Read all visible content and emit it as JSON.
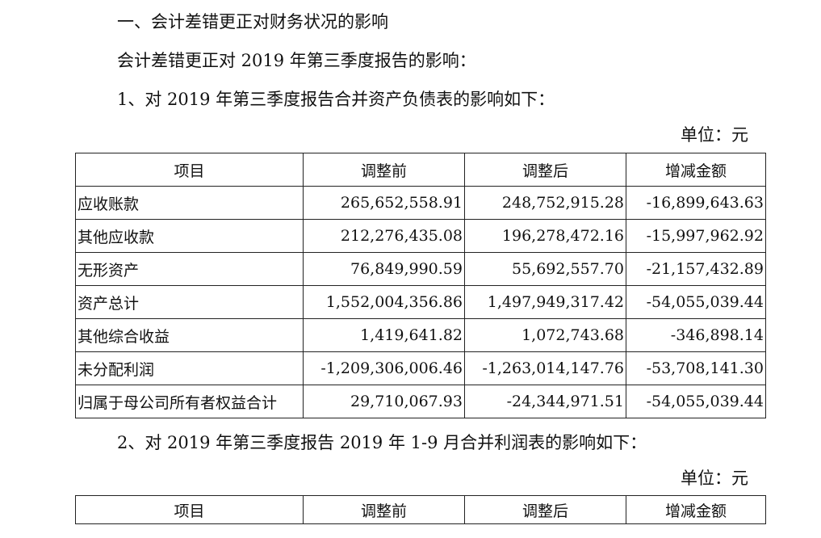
{
  "section_heading": "一、会计差错更正对财务状况的影响",
  "intro": "会计差错更正对 2019 年第三季度报告的影响：",
  "item1_heading": "1、对 2019 年第三季度报告合并资产负债表的影响如下：",
  "unit_label": "单位：元",
  "table1": {
    "headers": [
      "项目",
      "调整前",
      "调整后",
      "增减金额"
    ],
    "rows": [
      [
        "应收账款",
        "265,652,558.91",
        "248,752,915.28",
        "-16,899,643.63"
      ],
      [
        "其他应收款",
        "212,276,435.08",
        "196,278,472.16",
        "-15,997,962.92"
      ],
      [
        "无形资产",
        "76,849,990.59",
        "55,692,557.70",
        "-21,157,432.89"
      ],
      [
        "资产总计",
        "1,552,004,356.86",
        "1,497,949,317.42",
        "-54,055,039.44"
      ],
      [
        "其他综合收益",
        "1,419,641.82",
        "1,072,743.68",
        "-346,898.14"
      ],
      [
        "未分配利润",
        "-1,209,306,006.46",
        "-1,263,014,147.76",
        "-53,708,141.30"
      ],
      [
        "归属于母公司所有者权益合计",
        "29,710,067.93",
        "-24,344,971.51",
        "-54,055,039.44"
      ]
    ]
  },
  "item2_heading": "2、对 2019 年第三季度报告 2019 年 1-9 月合并利润表的影响如下：",
  "unit_label_2": "单位：元",
  "table2": {
    "headers": [
      "项目",
      "调整前",
      "调整后",
      "增减金额"
    ]
  }
}
